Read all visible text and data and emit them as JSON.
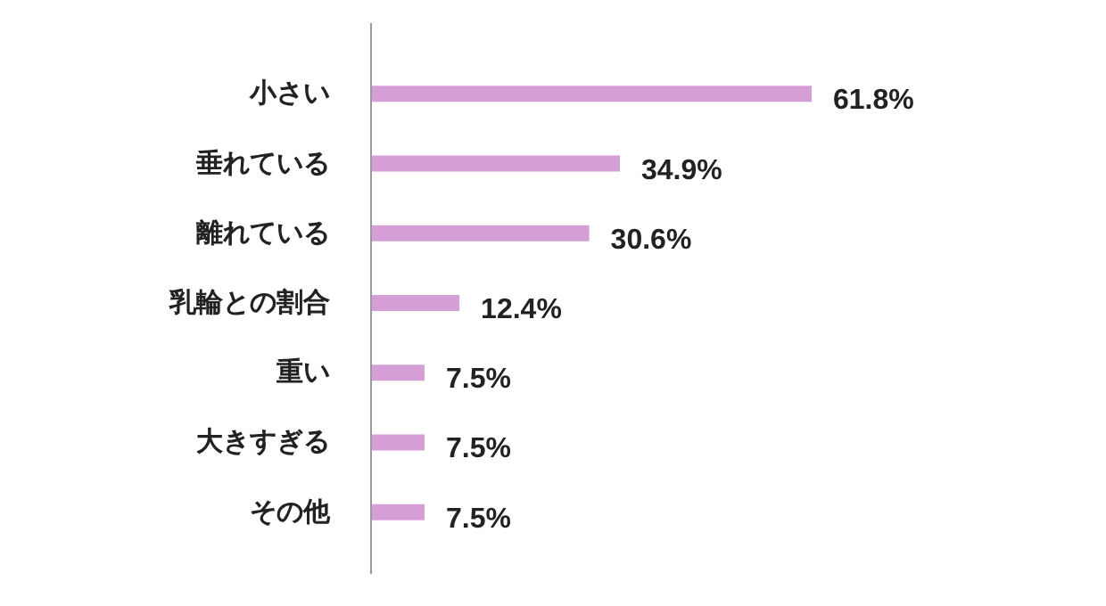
{
  "chart_data": {
    "type": "bar",
    "orientation": "horizontal",
    "categories": [
      "小さい",
      "垂れている",
      "離れている",
      "乳輪との割合",
      "重い",
      "大きすぎる",
      "その他"
    ],
    "values": [
      61.8,
      34.9,
      30.6,
      12.4,
      7.5,
      7.5,
      7.5
    ],
    "value_labels": [
      "61.8%",
      "34.9%",
      "30.6%",
      "12.4%",
      "7.5%",
      "7.5%",
      "7.5%"
    ],
    "color": "#d69ed6"
  }
}
